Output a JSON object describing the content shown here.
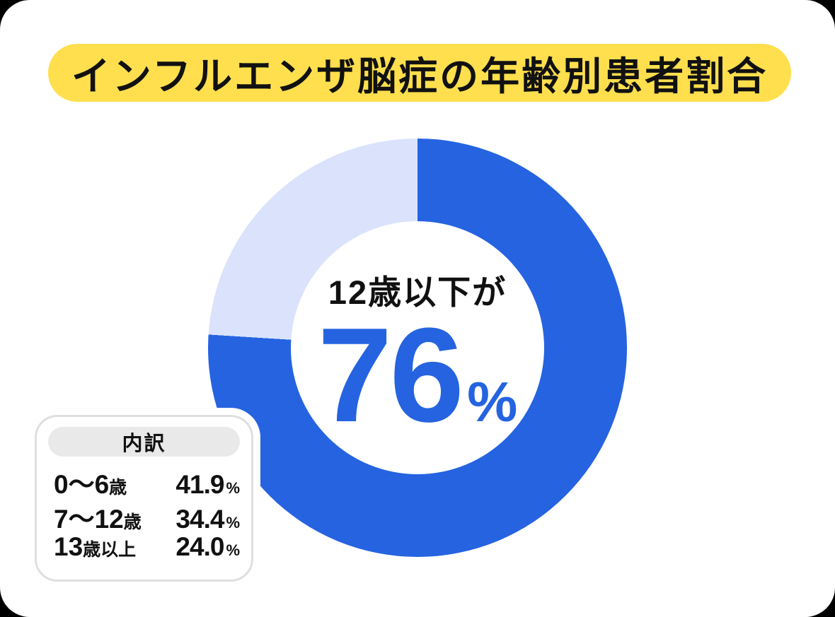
{
  "colors": {
    "page_bg": "#000000",
    "card_bg": "#ffffff",
    "title_bg": "#ffdf4d",
    "primary_blue": "#2563e0",
    "light_blue": "#dae3fb",
    "text_dark": "#111111",
    "legend_border": "#dfdfdf",
    "legend_header_bg": "#e9e9e9"
  },
  "title": "インフルエンザ脳症の年齢別患者割合",
  "donut": {
    "center_label": "12歳以下が",
    "center_value": "76",
    "center_unit": "%",
    "primary_pct": 76,
    "secondary_pct": 24
  },
  "legend": {
    "header": "内訳",
    "rows": [
      {
        "label_num": "0〜6",
        "label_suffix": "歳",
        "value": "41.9",
        "unit": "%"
      },
      {
        "label_num": "7〜12",
        "label_suffix": "歳",
        "value": "34.4",
        "unit": "%"
      },
      {
        "label_num": "13",
        "label_suffix": "歳以上",
        "value": "24.0",
        "unit": "%"
      }
    ]
  },
  "chart_data": {
    "type": "pie",
    "donut": true,
    "title": "インフルエンザ脳症の年齢別患者割合",
    "labels": [
      "0〜6歳",
      "7〜12歳",
      "13歳以上"
    ],
    "values": [
      41.9,
      34.4,
      24.0
    ],
    "unit": "%",
    "series_colors": [
      "#2563e0",
      "#2563e0",
      "#dae3fb"
    ],
    "groups": [
      {
        "label": "12歳以下",
        "value": 76,
        "color": "#2563e0"
      },
      {
        "label": "13歳以上",
        "value": 24,
        "color": "#dae3fb"
      }
    ],
    "annotation": "12歳以下が76%",
    "legend_title": "内訳",
    "legend_position": "bottom-left",
    "start_angle_deg": 0,
    "direction": "clockwise"
  }
}
